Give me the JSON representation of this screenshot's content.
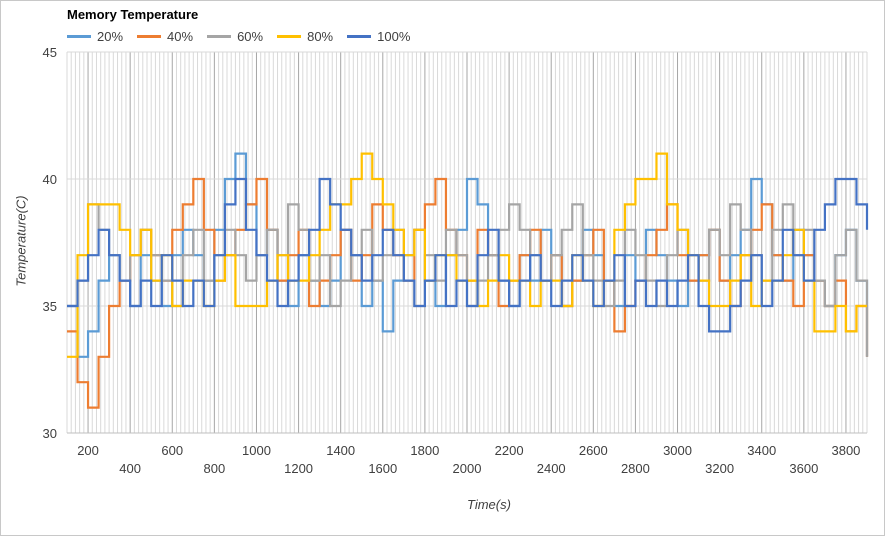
{
  "chart_data": {
    "type": "line",
    "title": "Memory Temperature",
    "xlabel": "Time(s)",
    "ylabel": "Temperature(C)",
    "xlim": [
      100,
      3900
    ],
    "ylim": [
      30,
      45
    ],
    "xticks_row1": [
      200,
      600,
      1000,
      1400,
      1800,
      2200,
      2600,
      3000,
      3400,
      3800
    ],
    "xticks_row2": [
      400,
      800,
      1200,
      1600,
      2000,
      2400,
      2800,
      3200,
      3600
    ],
    "yticks": [
      30,
      35,
      40,
      45
    ],
    "grid": true,
    "legend_position": "top-left",
    "series": [
      {
        "name": "20%",
        "color": "#5b9bd5",
        "x": [
          100,
          150,
          200,
          250,
          300,
          350,
          400,
          450,
          500,
          550,
          600,
          650,
          700,
          750,
          800,
          850,
          900,
          950,
          1000,
          1050,
          1100,
          1150,
          1200,
          1250,
          1300,
          1350,
          1400,
          1450,
          1500,
          1550,
          1600,
          1650,
          1700,
          1750,
          1800,
          1850,
          1900,
          1950,
          2000,
          2050,
          2100,
          2150,
          2200,
          2250,
          2300,
          2350,
          2400,
          2450,
          2500,
          2550,
          2600,
          2650,
          2700,
          2750,
          2800,
          2850,
          2900,
          2950,
          3000,
          3050,
          3100,
          3150,
          3200,
          3250,
          3300,
          3350,
          3400,
          3450,
          3500,
          3550,
          3600,
          3650,
          3700,
          3750,
          3800,
          3850,
          3900
        ],
        "y": [
          35,
          33,
          34,
          36,
          37,
          36,
          35,
          37,
          36,
          35,
          37,
          38,
          37,
          36,
          38,
          40,
          41,
          39,
          37,
          38,
          36,
          35,
          37,
          36,
          35,
          36,
          38,
          37,
          35,
          36,
          34,
          36,
          37,
          38,
          36,
          35,
          37,
          38,
          40,
          39,
          37,
          36,
          35,
          37,
          36,
          38,
          37,
          35,
          36,
          38,
          37,
          36,
          35,
          37,
          36,
          38,
          37,
          36,
          35,
          36,
          37,
          38,
          36,
          37,
          38,
          40,
          39,
          37,
          36,
          38,
          37,
          36,
          35,
          37,
          38,
          36,
          33
        ]
      },
      {
        "name": "40%",
        "color": "#ed7d31",
        "x": [
          100,
          150,
          200,
          250,
          300,
          350,
          400,
          450,
          500,
          550,
          600,
          650,
          700,
          750,
          800,
          850,
          900,
          950,
          1000,
          1050,
          1100,
          1150,
          1200,
          1250,
          1300,
          1350,
          1400,
          1450,
          1500,
          1550,
          1600,
          1650,
          1700,
          1750,
          1800,
          1850,
          1900,
          1950,
          2000,
          2050,
          2100,
          2150,
          2200,
          2250,
          2300,
          2350,
          2400,
          2450,
          2500,
          2550,
          2600,
          2650,
          2700,
          2750,
          2800,
          2850,
          2900,
          2950,
          3000,
          3050,
          3100,
          3150,
          3200,
          3250,
          3300,
          3350,
          3400,
          3450,
          3500,
          3550,
          3600,
          3650,
          3700,
          3750,
          3800,
          3850,
          3900
        ],
        "y": [
          34,
          32,
          31,
          33,
          35,
          36,
          37,
          38,
          37,
          36,
          38,
          39,
          40,
          38,
          36,
          37,
          38,
          39,
          40,
          38,
          36,
          37,
          38,
          35,
          36,
          37,
          38,
          36,
          37,
          39,
          38,
          37,
          36,
          38,
          39,
          40,
          38,
          37,
          36,
          38,
          37,
          35,
          36,
          37,
          38,
          36,
          37,
          35,
          36,
          37,
          38,
          36,
          34,
          35,
          36,
          37,
          38,
          39,
          37,
          36,
          37,
          38,
          36,
          35,
          37,
          38,
          39,
          37,
          36,
          35,
          37,
          36,
          35,
          36,
          34,
          35,
          33
        ]
      },
      {
        "name": "60%",
        "color": "#a5a5a5",
        "x": [
          100,
          150,
          200,
          250,
          300,
          350,
          400,
          450,
          500,
          550,
          600,
          650,
          700,
          750,
          800,
          850,
          900,
          950,
          1000,
          1050,
          1100,
          1150,
          1200,
          1250,
          1300,
          1350,
          1400,
          1450,
          1500,
          1550,
          1600,
          1650,
          1700,
          1750,
          1800,
          1850,
          1900,
          1950,
          2000,
          2050,
          2100,
          2150,
          2200,
          2250,
          2300,
          2350,
          2400,
          2450,
          2500,
          2550,
          2600,
          2650,
          2700,
          2750,
          2800,
          2850,
          2900,
          2950,
          3000,
          3050,
          3100,
          3150,
          3200,
          3250,
          3300,
          3350,
          3400,
          3450,
          3500,
          3550,
          3600,
          3650,
          3700,
          3750,
          3800,
          3850,
          3900
        ],
        "y": [
          35,
          36,
          39,
          38,
          37,
          36,
          37,
          38,
          37,
          36,
          35,
          37,
          38,
          36,
          37,
          38,
          37,
          36,
          37,
          38,
          37,
          39,
          38,
          36,
          37,
          35,
          36,
          37,
          38,
          36,
          37,
          38,
          36,
          35,
          37,
          36,
          38,
          37,
          35,
          36,
          37,
          38,
          39,
          38,
          37,
          36,
          37,
          38,
          39,
          37,
          36,
          35,
          36,
          38,
          37,
          36,
          35,
          37,
          38,
          37,
          36,
          38,
          37,
          39,
          38,
          37,
          36,
          38,
          39,
          37,
          38,
          36,
          35,
          37,
          38,
          36,
          33
        ]
      },
      {
        "name": "80%",
        "color": "#ffc000",
        "x": [
          100,
          150,
          200,
          250,
          300,
          350,
          400,
          450,
          500,
          550,
          600,
          650,
          700,
          750,
          800,
          850,
          900,
          950,
          1000,
          1050,
          1100,
          1150,
          1200,
          1250,
          1300,
          1350,
          1400,
          1450,
          1500,
          1550,
          1600,
          1650,
          1700,
          1750,
          1800,
          1850,
          1900,
          1950,
          2000,
          2050,
          2100,
          2150,
          2200,
          2250,
          2300,
          2350,
          2400,
          2450,
          2500,
          2550,
          2600,
          2650,
          2700,
          2750,
          2800,
          2850,
          2900,
          2950,
          3000,
          3050,
          3100,
          3150,
          3200,
          3250,
          3300,
          3350,
          3400,
          3450,
          3500,
          3550,
          3600,
          3650,
          3700,
          3750,
          3800,
          3850,
          3900
        ],
        "y": [
          33,
          37,
          39,
          39,
          39,
          38,
          37,
          38,
          36,
          37,
          35,
          36,
          36,
          35,
          36,
          37,
          35,
          35,
          35,
          36,
          37,
          36,
          36,
          37,
          38,
          39,
          39,
          40,
          41,
          40,
          39,
          38,
          37,
          38,
          36,
          37,
          37,
          36,
          36,
          35,
          36,
          37,
          36,
          36,
          35,
          36,
          36,
          35,
          37,
          36,
          35,
          36,
          38,
          39,
          40,
          40,
          41,
          39,
          38,
          37,
          36,
          35,
          35,
          36,
          37,
          35,
          36,
          36,
          37,
          38,
          36,
          34,
          34,
          35,
          34,
          35,
          35
        ]
      },
      {
        "name": "100%",
        "color": "#4472c4",
        "x": [
          100,
          150,
          200,
          250,
          300,
          350,
          400,
          450,
          500,
          550,
          600,
          650,
          700,
          750,
          800,
          850,
          900,
          950,
          1000,
          1050,
          1100,
          1150,
          1200,
          1250,
          1300,
          1350,
          1400,
          1450,
          1500,
          1550,
          1600,
          1650,
          1700,
          1750,
          1800,
          1850,
          1900,
          1950,
          2000,
          2050,
          2100,
          2150,
          2200,
          2250,
          2300,
          2350,
          2400,
          2450,
          2500,
          2550,
          2600,
          2650,
          2700,
          2750,
          2800,
          2850,
          2900,
          2950,
          3000,
          3050,
          3100,
          3150,
          3200,
          3250,
          3300,
          3350,
          3400,
          3450,
          3500,
          3550,
          3600,
          3650,
          3700,
          3750,
          3800,
          3850,
          3900
        ],
        "y": [
          35,
          36,
          37,
          38,
          37,
          36,
          35,
          36,
          35,
          37,
          36,
          35,
          36,
          35,
          37,
          39,
          40,
          38,
          37,
          36,
          35,
          36,
          37,
          38,
          40,
          39,
          38,
          37,
          36,
          37,
          38,
          37,
          36,
          35,
          36,
          37,
          35,
          36,
          35,
          37,
          38,
          36,
          35,
          36,
          37,
          36,
          35,
          36,
          37,
          36,
          35,
          36,
          37,
          35,
          36,
          35,
          36,
          35,
          36,
          37,
          35,
          34,
          34,
          35,
          36,
          37,
          35,
          36,
          38,
          37,
          36,
          38,
          39,
          40,
          40,
          39,
          38
        ]
      }
    ]
  }
}
